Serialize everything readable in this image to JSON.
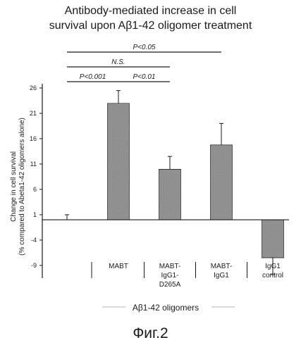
{
  "figure": {
    "title_line1": "Antibody-mediated increase in cell",
    "title_line2": "survival upon Aβ1-42 oligomer treatment",
    "caption": "Фиг.2"
  },
  "chart_data": {
    "type": "bar",
    "title": "Antibody-mediated increase in cell survival upon Aβ1-42 oligomer treatment",
    "ylabel_line1": "Change in cell survival",
    "ylabel_line2": "(% compared to Abeta1-42 oligomers alone)",
    "xlabel": "Aβ1-42 oligomers",
    "yticks": [
      -9,
      -4,
      1,
      6,
      11,
      16,
      21,
      26
    ],
    "ylim": [
      -10,
      26
    ],
    "categories": [
      {
        "lines": [
          ""
        ]
      },
      {
        "lines": [
          "MABT"
        ]
      },
      {
        "lines": [
          "MABT-",
          "IgG1-",
          "D265A"
        ]
      },
      {
        "lines": [
          "MABT-",
          "IgG1"
        ]
      },
      {
        "lines": [
          "IgG1",
          "control"
        ]
      }
    ],
    "values": [
      0,
      23,
      10,
      14.8,
      -7.5
    ],
    "errors": [
      1,
      2.5,
      2.5,
      4.2,
      3.3
    ],
    "significance": [
      {
        "label": "P<0.05",
        "from": 0,
        "to": 3
      },
      {
        "label": "N.S.",
        "from": 0,
        "to": 2
      },
      {
        "label": "P<0.001",
        "from": 0,
        "to": 1
      },
      {
        "label": "P<0.01",
        "from": 1,
        "to": 2
      }
    ],
    "colors": {
      "bar": "#9a9a9a",
      "axis": "#1a1a1a"
    }
  }
}
